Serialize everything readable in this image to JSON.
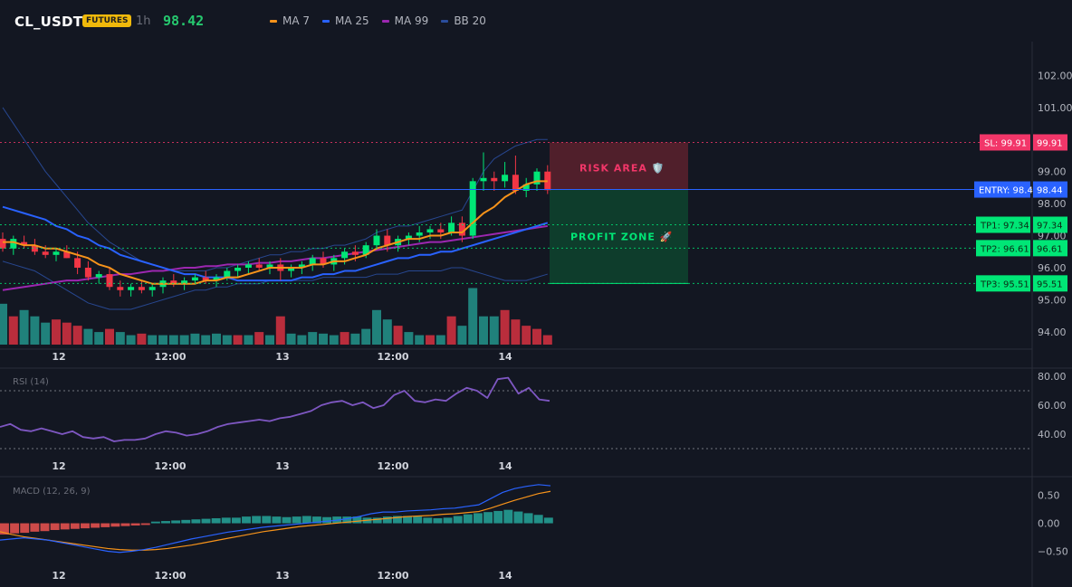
{
  "header": {
    "symbol": "CL_USDT",
    "badge": "FUTURES",
    "timeframe": "1h",
    "price": "98.42",
    "legend": [
      {
        "label": "MA 7",
        "color": "#f7931a"
      },
      {
        "label": "MA 25",
        "color": "#2962ff"
      },
      {
        "label": "MA 99",
        "color": "#9c27b0"
      },
      {
        "label": "BB 20",
        "color": "#2a4d9c"
      }
    ]
  },
  "colors": {
    "up": "#26a69a",
    "upBright": "#00e676",
    "down": "#f23645",
    "ma7": "#f7931a",
    "ma25": "#2962ff",
    "ma99": "#9c27b0",
    "bb": "#2a4d9c",
    "rsi": "#7e57c2",
    "macd": "#2962ff",
    "signal": "#f7931a"
  },
  "chart_data": [
    {
      "type": "candlestick",
      "title": "CL_USDT",
      "ylim": [
        93.6,
        103.0
      ],
      "y_ticks": [
        "102.00",
        "101.00",
        "99.00",
        "98.00",
        "97.00",
        "96.00",
        "95.00",
        "94.00"
      ],
      "y_tick_values": [
        102,
        101,
        99,
        98,
        97,
        96,
        95,
        94
      ],
      "x_ticks": [
        "12",
        "12:00",
        "13",
        "12:00",
        "14"
      ],
      "x_tick_index": [
        5,
        15,
        25,
        35,
        45
      ],
      "candles": [
        [
          96.9,
          97.1,
          96.5,
          96.6
        ],
        [
          96.6,
          97.0,
          96.4,
          96.9
        ],
        [
          96.8,
          97.0,
          96.6,
          96.7
        ],
        [
          96.7,
          96.9,
          96.4,
          96.5
        ],
        [
          96.5,
          96.7,
          96.3,
          96.4
        ],
        [
          96.4,
          96.6,
          96.2,
          96.5
        ],
        [
          96.5,
          96.7,
          96.3,
          96.3
        ],
        [
          96.3,
          96.5,
          95.8,
          96.0
        ],
        [
          96.0,
          96.2,
          95.6,
          95.7
        ],
        [
          95.7,
          95.9,
          95.5,
          95.8
        ],
        [
          95.8,
          96.0,
          95.3,
          95.4
        ],
        [
          95.4,
          95.6,
          95.1,
          95.3
        ],
        [
          95.3,
          95.5,
          95.1,
          95.4
        ],
        [
          95.4,
          95.6,
          95.2,
          95.3
        ],
        [
          95.3,
          95.5,
          95.1,
          95.4
        ],
        [
          95.4,
          95.7,
          95.2,
          95.6
        ],
        [
          95.6,
          95.8,
          95.4,
          95.5
        ],
        [
          95.5,
          95.7,
          95.3,
          95.6
        ],
        [
          95.6,
          95.8,
          95.5,
          95.7
        ],
        [
          95.7,
          95.9,
          95.5,
          95.6
        ],
        [
          95.6,
          95.8,
          95.4,
          95.7
        ],
        [
          95.7,
          96.0,
          95.6,
          95.9
        ],
        [
          95.9,
          96.1,
          95.7,
          96.0
        ],
        [
          96.0,
          96.2,
          95.8,
          96.1
        ],
        [
          96.1,
          96.3,
          95.9,
          96.0
        ],
        [
          96.0,
          96.2,
          95.8,
          96.1
        ],
        [
          96.1,
          96.3,
          95.6,
          95.9
        ],
        [
          95.9,
          96.1,
          95.7,
          96.0
        ],
        [
          96.0,
          96.2,
          95.8,
          96.1
        ],
        [
          96.1,
          96.4,
          95.9,
          96.3
        ],
        [
          96.3,
          96.5,
          96.0,
          96.1
        ],
        [
          96.1,
          96.4,
          95.9,
          96.3
        ],
        [
          96.3,
          96.6,
          96.1,
          96.5
        ],
        [
          96.5,
          96.7,
          96.2,
          96.4
        ],
        [
          96.4,
          96.8,
          96.3,
          96.7
        ],
        [
          96.7,
          97.2,
          96.6,
          97.0
        ],
        [
          97.0,
          97.2,
          96.5,
          96.7
        ],
        [
          96.7,
          97.0,
          96.5,
          96.9
        ],
        [
          96.9,
          97.1,
          96.7,
          97.0
        ],
        [
          97.0,
          97.3,
          96.8,
          97.1
        ],
        [
          97.1,
          97.3,
          96.9,
          97.2
        ],
        [
          97.2,
          97.4,
          96.9,
          97.1
        ],
        [
          97.1,
          97.6,
          97.0,
          97.4
        ],
        [
          97.4,
          97.6,
          96.8,
          97.0
        ],
        [
          97.0,
          98.8,
          96.9,
          98.7
        ],
        [
          98.7,
          99.6,
          98.4,
          98.8
        ],
        [
          98.8,
          99.0,
          98.4,
          98.7
        ],
        [
          98.7,
          99.3,
          98.5,
          98.9
        ],
        [
          98.9,
          99.5,
          98.3,
          98.4
        ],
        [
          98.4,
          98.8,
          98.2,
          98.6
        ],
        [
          98.6,
          99.1,
          98.4,
          99.0
        ],
        [
          99.0,
          99.2,
          98.3,
          98.42
        ]
      ],
      "volume": [
        [
          "u",
          1.3
        ],
        [
          "d",
          0.9
        ],
        [
          "u",
          1.1
        ],
        [
          "u",
          0.9
        ],
        [
          "u",
          0.7
        ],
        [
          "d",
          0.8
        ],
        [
          "d",
          0.7
        ],
        [
          "d",
          0.6
        ],
        [
          "u",
          0.5
        ],
        [
          "u",
          0.4
        ],
        [
          "d",
          0.5
        ],
        [
          "u",
          0.4
        ],
        [
          "u",
          0.3
        ],
        [
          "d",
          0.35
        ],
        [
          "u",
          0.3
        ],
        [
          "u",
          0.3
        ],
        [
          "u",
          0.3
        ],
        [
          "u",
          0.3
        ],
        [
          "u",
          0.35
        ],
        [
          "u",
          0.3
        ],
        [
          "u",
          0.35
        ],
        [
          "u",
          0.3
        ],
        [
          "d",
          0.3
        ],
        [
          "u",
          0.3
        ],
        [
          "d",
          0.4
        ],
        [
          "u",
          0.3
        ],
        [
          "d",
          0.9
        ],
        [
          "u",
          0.35
        ],
        [
          "u",
          0.3
        ],
        [
          "u",
          0.4
        ],
        [
          "u",
          0.35
        ],
        [
          "u",
          0.3
        ],
        [
          "d",
          0.4
        ],
        [
          "u",
          0.35
        ],
        [
          "u",
          0.5
        ],
        [
          "u",
          1.1
        ],
        [
          "u",
          0.8
        ],
        [
          "d",
          0.6
        ],
        [
          "u",
          0.4
        ],
        [
          "u",
          0.3
        ],
        [
          "d",
          0.3
        ],
        [
          "u",
          0.3
        ],
        [
          "d",
          0.9
        ],
        [
          "u",
          0.6
        ],
        [
          "u",
          1.8
        ],
        [
          "u",
          0.9
        ],
        [
          "u",
          0.9
        ],
        [
          "d",
          1.1
        ],
        [
          "d",
          0.8
        ],
        [
          "d",
          0.6
        ],
        [
          "d",
          0.5
        ],
        [
          "d",
          0.3
        ]
      ],
      "ma7": [
        96.8,
        96.8,
        96.7,
        96.7,
        96.6,
        96.6,
        96.5,
        96.4,
        96.3,
        96.1,
        96.0,
        95.8,
        95.7,
        95.6,
        95.5,
        95.5,
        95.5,
        95.5,
        95.5,
        95.6,
        95.6,
        95.7,
        95.7,
        95.8,
        95.9,
        96.0,
        96.0,
        96.0,
        96.0,
        96.1,
        96.1,
        96.2,
        96.2,
        96.3,
        96.4,
        96.6,
        96.7,
        96.8,
        96.9,
        96.9,
        97.0,
        97.0,
        97.1,
        97.1,
        97.4,
        97.7,
        97.9,
        98.2,
        98.4,
        98.6,
        98.7,
        98.7
      ],
      "ma25": [
        97.9,
        97.8,
        97.7,
        97.6,
        97.5,
        97.3,
        97.2,
        97.0,
        96.9,
        96.7,
        96.6,
        96.4,
        96.3,
        96.2,
        96.1,
        96.0,
        95.9,
        95.8,
        95.8,
        95.7,
        95.7,
        95.7,
        95.6,
        95.6,
        95.6,
        95.6,
        95.6,
        95.6,
        95.7,
        95.7,
        95.8,
        95.8,
        95.9,
        95.9,
        96.0,
        96.1,
        96.2,
        96.3,
        96.3,
        96.4,
        96.4,
        96.5,
        96.5,
        96.6,
        96.7,
        96.8,
        96.9,
        97.0,
        97.1,
        97.2,
        97.3,
        97.4
      ],
      "ma99": [
        95.3,
        95.35,
        95.4,
        95.45,
        95.5,
        95.55,
        95.6,
        95.6,
        95.65,
        95.7,
        95.75,
        95.8,
        95.8,
        95.85,
        95.9,
        95.9,
        95.95,
        96.0,
        96.0,
        96.05,
        96.05,
        96.1,
        96.1,
        96.1,
        96.15,
        96.15,
        96.2,
        96.2,
        96.25,
        96.3,
        96.3,
        96.35,
        96.4,
        96.45,
        96.5,
        96.55,
        96.6,
        96.65,
        96.7,
        96.75,
        96.8,
        96.8,
        96.85,
        96.9,
        96.95,
        97.0,
        97.05,
        97.1,
        97.15,
        97.2,
        97.25,
        97.3
      ],
      "bb_upper": [
        101.0,
        100.5,
        100.0,
        99.5,
        99.0,
        98.6,
        98.2,
        97.8,
        97.4,
        97.1,
        96.8,
        96.6,
        96.4,
        96.2,
        96.1,
        96.0,
        95.9,
        95.9,
        95.9,
        95.9,
        96.0,
        96.0,
        96.1,
        96.2,
        96.3,
        96.4,
        96.4,
        96.5,
        96.5,
        96.6,
        96.6,
        96.7,
        96.7,
        96.8,
        96.9,
        97.1,
        97.2,
        97.3,
        97.3,
        97.4,
        97.5,
        97.6,
        97.7,
        97.8,
        98.4,
        99.0,
        99.4,
        99.6,
        99.8,
        99.9,
        100.0,
        100.0
      ],
      "bb_lower": [
        96.2,
        96.1,
        96.0,
        95.9,
        95.7,
        95.5,
        95.3,
        95.1,
        94.9,
        94.8,
        94.7,
        94.7,
        94.7,
        94.8,
        94.9,
        95.0,
        95.1,
        95.2,
        95.3,
        95.3,
        95.4,
        95.4,
        95.5,
        95.5,
        95.5,
        95.6,
        95.6,
        95.6,
        95.6,
        95.6,
        95.7,
        95.7,
        95.7,
        95.7,
        95.7,
        95.8,
        95.8,
        95.8,
        95.9,
        95.9,
        95.9,
        95.9,
        96.0,
        96.0,
        95.9,
        95.8,
        95.7,
        95.6,
        95.6,
        95.6,
        95.7,
        95.8
      ],
      "levels": [
        {
          "label": "SL: 99.91",
          "value_label": "99.91",
          "value": 99.91,
          "color": "#f23669"
        },
        {
          "label": "ENTRY: 98.44",
          "value_label": "98.44",
          "value": 98.44,
          "color": "#2962ff"
        },
        {
          "label": "TP1: 97.34",
          "value_label": "97.34",
          "value": 97.34,
          "color": "#00e676"
        },
        {
          "label": "TP2: 96.61",
          "value_label": "96.61",
          "value": 96.61,
          "color": "#00e676"
        },
        {
          "label": "TP3: 95.51",
          "value_label": "95.51",
          "value": 95.51,
          "color": "#00e676"
        }
      ],
      "risk_label": "RISK AREA 🛡️",
      "profit_label": "PROFIT ZONE 🚀"
    },
    {
      "type": "line",
      "title": "RSI (14)",
      "ylim": [
        25,
        85
      ],
      "y_ticks": [
        "80.00",
        "60.00",
        "40.00"
      ],
      "y_tick_values": [
        80,
        60,
        40
      ],
      "bands": [
        70,
        30
      ],
      "x_ticks": [
        "12",
        "12:00",
        "13",
        "12:00",
        "14"
      ],
      "values": [
        45,
        47,
        43,
        42,
        44,
        42,
        40,
        42,
        38,
        37,
        38,
        35,
        36,
        36,
        37,
        40,
        42,
        41,
        39,
        40,
        42,
        45,
        47,
        48,
        49,
        50,
        49,
        51,
        52,
        54,
        56,
        60,
        62,
        63,
        60,
        62,
        58,
        60,
        67,
        70,
        63,
        62,
        64,
        63,
        68,
        72,
        70,
        65,
        78,
        79,
        68,
        72,
        64,
        63
      ]
    },
    {
      "type": "bar",
      "title": "MACD (12, 26, 9)",
      "ylim": [
        -0.75,
        0.8
      ],
      "y_ticks": [
        "0.50",
        "0.00",
        "−0.50"
      ],
      "y_tick_values": [
        0.5,
        0.0,
        -0.5
      ],
      "x_ticks": [
        "12",
        "12:00",
        "13",
        "12:00",
        "14"
      ],
      "histogram": [
        -0.2,
        -0.18,
        -0.17,
        -0.15,
        -0.14,
        -0.12,
        -0.11,
        -0.1,
        -0.09,
        -0.08,
        -0.07,
        -0.06,
        -0.05,
        -0.04,
        -0.03,
        0.03,
        0.04,
        0.05,
        0.06,
        0.07,
        0.08,
        0.09,
        0.1,
        0.1,
        0.12,
        0.13,
        0.13,
        0.12,
        0.11,
        0.12,
        0.13,
        0.12,
        0.11,
        0.12,
        0.12,
        0.12,
        0.1,
        0.1,
        0.12,
        0.13,
        0.13,
        0.12,
        0.1,
        0.09,
        0.1,
        0.13,
        0.16,
        0.18,
        0.2,
        0.22,
        0.24,
        0.21,
        0.18,
        0.15,
        0.1
      ],
      "macd": [
        -0.3,
        -0.28,
        -0.26,
        -0.28,
        -0.3,
        -0.34,
        -0.38,
        -0.42,
        -0.46,
        -0.5,
        -0.52,
        -0.5,
        -0.47,
        -0.43,
        -0.38,
        -0.33,
        -0.28,
        -0.24,
        -0.2,
        -0.16,
        -0.13,
        -0.1,
        -0.07,
        -0.05,
        -0.03,
        -0.01,
        0.01,
        0.03,
        0.05,
        0.08,
        0.12,
        0.17,
        0.2,
        0.2,
        0.22,
        0.23,
        0.24,
        0.26,
        0.27,
        0.3,
        0.33,
        0.44,
        0.55,
        0.62,
        0.66,
        0.69,
        0.67
      ],
      "signal": [
        -0.15,
        -0.2,
        -0.24,
        -0.27,
        -0.3,
        -0.33,
        -0.36,
        -0.39,
        -0.42,
        -0.45,
        -0.47,
        -0.48,
        -0.48,
        -0.47,
        -0.45,
        -0.42,
        -0.39,
        -0.35,
        -0.31,
        -0.27,
        -0.23,
        -0.19,
        -0.15,
        -0.12,
        -0.09,
        -0.06,
        -0.04,
        -0.02,
        0.0,
        0.02,
        0.04,
        0.06,
        0.08,
        0.1,
        0.12,
        0.13,
        0.14,
        0.16,
        0.17,
        0.19,
        0.21,
        0.27,
        0.34,
        0.41,
        0.47,
        0.53,
        0.57
      ]
    }
  ]
}
